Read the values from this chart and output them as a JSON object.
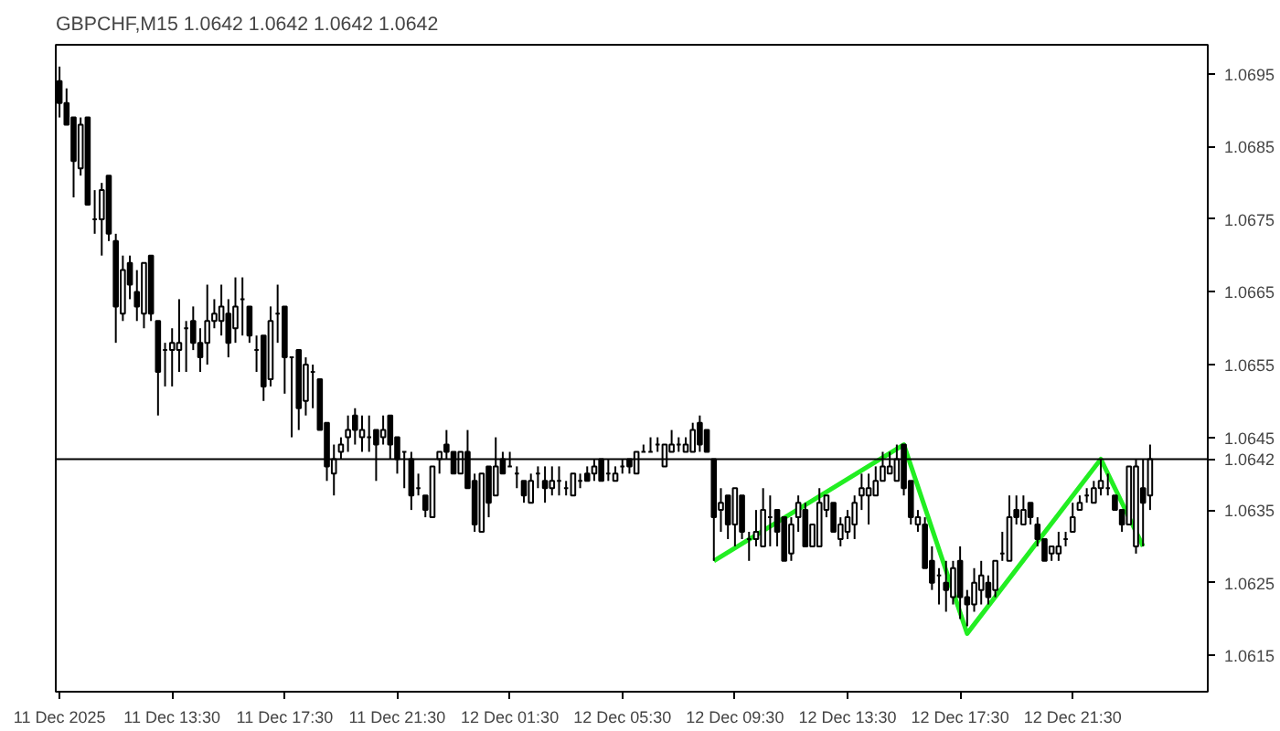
{
  "chart_data": {
    "type": "candlestick",
    "title": "GBPCHF,M15 1.0642 1.0642 1.0642 1.0642",
    "x": [
      "2025-12-11T09:30",
      "2025-12-11T09:45",
      "2025-12-11T10:00",
      "2025-12-11T10:15",
      "2025-12-11T10:30",
      "2025-12-11T10:45",
      "2025-12-11T11:00",
      "2025-12-11T11:15",
      "2025-12-11T11:30",
      "2025-12-11T11:45",
      "2025-12-11T12:00",
      "2025-12-11T12:15",
      "2025-12-11T12:30",
      "2025-12-11T12:45",
      "2025-12-11T13:00",
      "2025-12-11T13:15",
      "2025-12-11T13:30",
      "2025-12-11T13:45",
      "2025-12-11T14:00",
      "2025-12-11T14:15",
      "2025-12-11T14:30",
      "2025-12-11T14:45",
      "2025-12-11T15:00",
      "2025-12-11T15:15",
      "2025-12-11T15:30",
      "2025-12-11T15:45",
      "2025-12-11T16:00",
      "2025-12-11T16:15",
      "2025-12-11T16:30",
      "2025-12-11T16:45",
      "2025-12-11T17:00",
      "2025-12-11T17:15",
      "2025-12-11T17:30",
      "2025-12-11T17:45",
      "2025-12-11T18:00",
      "2025-12-11T18:15",
      "2025-12-11T18:30",
      "2025-12-11T18:45",
      "2025-12-11T19:00",
      "2025-12-11T19:15",
      "2025-12-11T19:30",
      "2025-12-11T19:45",
      "2025-12-11T20:00",
      "2025-12-11T20:15",
      "2025-12-11T20:30",
      "2025-12-11T20:45",
      "2025-12-11T21:00",
      "2025-12-11T21:15",
      "2025-12-11T21:30",
      "2025-12-11T21:45",
      "2025-12-11T22:00",
      "2025-12-11T22:15",
      "2025-12-11T22:30",
      "2025-12-11T22:45",
      "2025-12-11T23:00",
      "2025-12-11T23:15",
      "2025-12-11T23:30",
      "2025-12-11T23:45",
      "2025-12-12T00:00",
      "2025-12-12T00:15",
      "2025-12-12T00:30",
      "2025-12-12T00:45",
      "2025-12-12T01:00",
      "2025-12-12T01:15",
      "2025-12-12T01:30",
      "2025-12-12T01:45",
      "2025-12-12T02:00",
      "2025-12-12T02:15",
      "2025-12-12T02:30",
      "2025-12-12T02:45",
      "2025-12-12T03:00",
      "2025-12-12T03:15",
      "2025-12-12T03:30",
      "2025-12-12T03:45",
      "2025-12-12T04:00",
      "2025-12-12T04:15",
      "2025-12-12T04:30",
      "2025-12-12T04:45",
      "2025-12-12T05:00",
      "2025-12-12T05:15",
      "2025-12-12T05:30",
      "2025-12-12T05:45",
      "2025-12-12T06:00",
      "2025-12-12T06:15",
      "2025-12-12T06:30",
      "2025-12-12T06:45",
      "2025-12-12T07:00",
      "2025-12-12T07:15",
      "2025-12-12T07:30",
      "2025-12-12T07:45",
      "2025-12-12T08:00",
      "2025-12-12T08:15",
      "2025-12-12T08:30",
      "2025-12-12T08:45",
      "2025-12-12T09:00",
      "2025-12-12T09:15",
      "2025-12-12T09:30",
      "2025-12-12T09:45",
      "2025-12-12T10:00",
      "2025-12-12T10:15",
      "2025-12-12T10:30",
      "2025-12-12T10:45",
      "2025-12-12T11:00",
      "2025-12-12T11:15",
      "2025-12-12T11:30",
      "2025-12-12T11:45",
      "2025-12-12T12:00",
      "2025-12-12T12:15",
      "2025-12-12T12:30",
      "2025-12-12T12:45",
      "2025-12-12T13:00",
      "2025-12-12T13:15",
      "2025-12-12T13:30",
      "2025-12-12T13:45",
      "2025-12-12T14:00",
      "2025-12-12T14:15",
      "2025-12-12T14:30",
      "2025-12-12T14:45",
      "2025-12-12T15:00",
      "2025-12-12T15:15",
      "2025-12-12T15:30",
      "2025-12-12T15:45",
      "2025-12-12T16:00",
      "2025-12-12T16:15",
      "2025-12-12T16:30",
      "2025-12-12T16:45",
      "2025-12-12T17:00",
      "2025-12-12T17:15",
      "2025-12-12T17:30",
      "2025-12-12T17:45",
      "2025-12-12T18:00",
      "2025-12-12T18:15",
      "2025-12-12T18:30",
      "2025-12-12T18:45",
      "2025-12-12T19:00",
      "2025-12-12T19:15",
      "2025-12-12T19:30",
      "2025-12-12T19:45",
      "2025-12-12T20:00",
      "2025-12-12T20:15",
      "2025-12-12T20:30",
      "2025-12-12T20:45",
      "2025-12-12T21:00",
      "2025-12-12T21:15",
      "2025-12-12T21:30",
      "2025-12-12T21:45",
      "2025-12-12T22:00",
      "2025-12-12T22:15",
      "2025-12-12T22:30",
      "2025-12-12T22:45",
      "2025-12-12T23:00",
      "2025-12-12T23:15",
      "2025-12-12T23:30",
      "2025-12-12T23:45",
      "2025-12-13T00:00",
      "2025-12-13T00:15"
    ],
    "ohlc": [
      [
        1.0694,
        1.0696,
        1.0689,
        1.0691
      ],
      [
        1.0691,
        1.0693,
        1.0688,
        1.0688
      ],
      [
        1.0689,
        1.0689,
        1.0678,
        1.0683
      ],
      [
        1.0682,
        1.0689,
        1.0681,
        1.0688
      ],
      [
        1.0689,
        1.0689,
        1.0677,
        1.0677
      ],
      [
        1.0675,
        1.0679,
        1.0673,
        1.0675
      ],
      [
        1.0675,
        1.068,
        1.067,
        1.0679
      ],
      [
        1.0681,
        1.0681,
        1.0672,
        1.0673
      ],
      [
        1.0672,
        1.0673,
        1.0658,
        1.0663
      ],
      [
        1.0662,
        1.067,
        1.0661,
        1.0668
      ],
      [
        1.0669,
        1.067,
        1.0664,
        1.0666
      ],
      [
        1.0665,
        1.0668,
        1.0661,
        1.0663
      ],
      [
        1.0662,
        1.0669,
        1.066,
        1.0669
      ],
      [
        1.067,
        1.067,
        1.0661,
        1.0662
      ],
      [
        1.0661,
        1.0661,
        1.0648,
        1.0654
      ],
      [
        1.0657,
        1.0658,
        1.0652,
        1.0657
      ],
      [
        1.0657,
        1.066,
        1.0652,
        1.0658
      ],
      [
        1.0657,
        1.0664,
        1.0654,
        1.0658
      ],
      [
        1.066,
        1.0661,
        1.0654,
        1.066
      ],
      [
        1.0661,
        1.0663,
        1.0657,
        1.0658
      ],
      [
        1.0658,
        1.066,
        1.0654,
        1.0656
      ],
      [
        1.0658,
        1.0666,
        1.0655,
        1.0661
      ],
      [
        1.0661,
        1.0664,
        1.066,
        1.0662
      ],
      [
        1.0661,
        1.0666,
        1.0659,
        1.0663
      ],
      [
        1.0662,
        1.0664,
        1.0656,
        1.0658
      ],
      [
        1.066,
        1.0667,
        1.0658,
        1.0663
      ],
      [
        1.0664,
        1.0667,
        1.0659,
        1.0664
      ],
      [
        1.0663,
        1.0663,
        1.0658,
        1.0659
      ],
      [
        1.0657,
        1.0659,
        1.0654,
        1.0657
      ],
      [
        1.0659,
        1.0659,
        1.065,
        1.0652
      ],
      [
        1.0653,
        1.0663,
        1.0652,
        1.0661
      ],
      [
        1.0662,
        1.0666,
        1.0658,
        1.0662
      ],
      [
        1.0663,
        1.0663,
        1.0651,
        1.0656
      ],
      [
        1.0656,
        1.0656,
        1.0645,
        1.0656
      ],
      [
        1.0657,
        1.0657,
        1.0646,
        1.0649
      ],
      [
        1.065,
        1.0656,
        1.0648,
        1.0655
      ],
      [
        1.0654,
        1.0655,
        1.0649,
        1.0654
      ],
      [
        1.0653,
        1.0653,
        1.0646,
        1.0646
      ],
      [
        1.0647,
        1.0647,
        1.0639,
        1.0641
      ],
      [
        1.064,
        1.0644,
        1.0637,
        1.0642
      ],
      [
        1.0643,
        1.0645,
        1.0642,
        1.0644
      ],
      [
        1.0645,
        1.0648,
        1.0643,
        1.0646
      ],
      [
        1.0648,
        1.0649,
        1.0644,
        1.0646
      ],
      [
        1.0645,
        1.0648,
        1.0643,
        1.0646
      ],
      [
        1.0645,
        1.0648,
        1.0643,
        1.0645
      ],
      [
        1.0646,
        1.0646,
        1.0639,
        1.0644
      ],
      [
        1.0645,
        1.0648,
        1.0644,
        1.0646
      ],
      [
        1.0648,
        1.0648,
        1.0642,
        1.0644
      ],
      [
        1.0645,
        1.0645,
        1.064,
        1.0642
      ],
      [
        1.0643,
        1.0643,
        1.0638,
        1.0643
      ],
      [
        1.0642,
        1.0643,
        1.0635,
        1.0637
      ],
      [
        1.0638,
        1.064,
        1.0637,
        1.0638
      ],
      [
        1.0637,
        1.0637,
        1.0634,
        1.0635
      ],
      [
        1.0634,
        1.0641,
        1.0634,
        1.0641
      ],
      [
        1.0642,
        1.0643,
        1.064,
        1.0643
      ],
      [
        1.0644,
        1.0646,
        1.0642,
        1.0643
      ],
      [
        1.0643,
        1.0643,
        1.064,
        1.064
      ],
      [
        1.064,
        1.0643,
        1.064,
        1.0643
      ],
      [
        1.0643,
        1.0646,
        1.0638,
        1.0638
      ],
      [
        1.0639,
        1.064,
        1.0632,
        1.0633
      ],
      [
        1.0632,
        1.064,
        1.0632,
        1.064
      ],
      [
        1.0641,
        1.0641,
        1.0634,
        1.0636
      ],
      [
        1.0637,
        1.0645,
        1.0637,
        1.0641
      ],
      [
        1.0642,
        1.0643,
        1.064,
        1.064
      ],
      [
        1.0641,
        1.0643,
        1.0641,
        1.0641
      ],
      [
        1.064,
        1.0641,
        1.0638,
        1.064
      ],
      [
        1.0639,
        1.0639,
        1.0636,
        1.0637
      ],
      [
        1.0636,
        1.064,
        1.0636,
        1.0639
      ],
      [
        1.064,
        1.0641,
        1.0638,
        1.064
      ],
      [
        1.0639,
        1.0641,
        1.0636,
        1.0638
      ],
      [
        1.0638,
        1.0641,
        1.0637,
        1.0639
      ],
      [
        1.0639,
        1.0641,
        1.0637,
        1.0639
      ],
      [
        1.0638,
        1.0639,
        1.0637,
        1.0638
      ],
      [
        1.0637,
        1.064,
        1.0637,
        1.064
      ],
      [
        1.0639,
        1.064,
        1.0638,
        1.0639
      ],
      [
        1.064,
        1.0641,
        1.0639,
        1.0639
      ],
      [
        1.064,
        1.0642,
        1.0639,
        1.0641
      ],
      [
        1.0642,
        1.0642,
        1.0639,
        1.0639
      ],
      [
        1.064,
        1.0642,
        1.0639,
        1.064
      ],
      [
        1.0639,
        1.0641,
        1.0639,
        1.064
      ],
      [
        1.0641,
        1.0642,
        1.064,
        1.0641
      ],
      [
        1.0642,
        1.0642,
        1.064,
        1.0641
      ],
      [
        1.064,
        1.0643,
        1.064,
        1.0643
      ],
      [
        1.0643,
        1.0644,
        1.0643,
        1.0643
      ],
      [
        1.0643,
        1.0645,
        1.0643,
        1.0643
      ],
      [
        1.0644,
        1.0645,
        1.0643,
        1.0644
      ],
      [
        1.0641,
        1.0644,
        1.0641,
        1.0644
      ],
      [
        1.0643,
        1.0646,
        1.0643,
        1.0644
      ],
      [
        1.0644,
        1.0645,
        1.0643,
        1.0644
      ],
      [
        1.0643,
        1.0645,
        1.0643,
        1.0644
      ],
      [
        1.0643,
        1.0647,
        1.0643,
        1.0646
      ],
      [
        1.0647,
        1.0648,
        1.0643,
        1.0644
      ],
      [
        1.0646,
        1.0646,
        1.0643,
        1.0643
      ],
      [
        1.0642,
        1.0642,
        1.0628,
        1.0634
      ],
      [
        1.0635,
        1.0638,
        1.0632,
        1.0636
      ],
      [
        1.0637,
        1.0637,
        1.0631,
        1.0633
      ],
      [
        1.0633,
        1.0638,
        1.063,
        1.0638
      ],
      [
        1.0637,
        1.0637,
        1.0631,
        1.0632
      ],
      [
        1.0631,
        1.0632,
        1.0628,
        1.0631
      ],
      [
        1.0631,
        1.0635,
        1.063,
        1.0632
      ],
      [
        1.063,
        1.0638,
        1.063,
        1.0635
      ],
      [
        1.0634,
        1.0637,
        1.063,
        1.0634
      ],
      [
        1.0635,
        1.0635,
        1.063,
        1.0632
      ],
      [
        1.0634,
        1.0634,
        1.0628,
        1.0628
      ],
      [
        1.0629,
        1.0634,
        1.0628,
        1.0633
      ],
      [
        1.0634,
        1.0637,
        1.0632,
        1.0636
      ],
      [
        1.0635,
        1.0636,
        1.063,
        1.063
      ],
      [
        1.063,
        1.0633,
        1.063,
        1.0633
      ],
      [
        1.063,
        1.0638,
        1.063,
        1.0636
      ],
      [
        1.0635,
        1.0637,
        1.0634,
        1.0637
      ],
      [
        1.0636,
        1.0636,
        1.0632,
        1.0632
      ],
      [
        1.0631,
        1.0634,
        1.063,
        1.0633
      ],
      [
        1.0632,
        1.0635,
        1.0631,
        1.0634
      ],
      [
        1.0633,
        1.0637,
        1.0631,
        1.0636
      ],
      [
        1.0637,
        1.064,
        1.0635,
        1.0638
      ],
      [
        1.0637,
        1.064,
        1.0633,
        1.0638
      ],
      [
        1.0637,
        1.0641,
        1.0637,
        1.0639
      ],
      [
        1.0639,
        1.0643,
        1.0639,
        1.0641
      ],
      [
        1.064,
        1.0643,
        1.064,
        1.0641
      ],
      [
        1.0639,
        1.0644,
        1.0639,
        1.0642
      ],
      [
        1.0644,
        1.0644,
        1.0637,
        1.0638
      ],
      [
        1.0639,
        1.0639,
        1.0633,
        1.0634
      ],
      [
        1.0633,
        1.0635,
        1.0632,
        1.0634
      ],
      [
        1.0633,
        1.0634,
        1.0627,
        1.0627
      ],
      [
        1.0628,
        1.063,
        1.0624,
        1.0625
      ],
      [
        1.0626,
        1.0627,
        1.0622,
        1.0626
      ],
      [
        1.0625,
        1.0628,
        1.0621,
        1.0624
      ],
      [
        1.0623,
        1.0628,
        1.0622,
        1.0627
      ],
      [
        1.0628,
        1.063,
        1.062,
        1.0623
      ],
      [
        1.0623,
        1.0624,
        1.0619,
        1.0622
      ],
      [
        1.0622,
        1.0627,
        1.0621,
        1.0625
      ],
      [
        1.0624,
        1.0628,
        1.0622,
        1.0626
      ],
      [
        1.0625,
        1.0626,
        1.0622,
        1.0623
      ],
      [
        1.0624,
        1.0628,
        1.0623,
        1.0628
      ],
      [
        1.0629,
        1.0632,
        1.0628,
        1.0629
      ],
      [
        1.0628,
        1.0637,
        1.0628,
        1.0634
      ],
      [
        1.0635,
        1.0637,
        1.0633,
        1.0634
      ],
      [
        1.0633,
        1.0637,
        1.0633,
        1.0635
      ],
      [
        1.0636,
        1.0636,
        1.0633,
        1.0634
      ],
      [
        1.0633,
        1.0634,
        1.063,
        1.0631
      ],
      [
        1.0631,
        1.0631,
        1.0628,
        1.0628
      ],
      [
        1.0629,
        1.063,
        1.0628,
        1.063
      ],
      [
        1.0629,
        1.0632,
        1.0628,
        1.063
      ],
      [
        1.0631,
        1.0632,
        1.063,
        1.0631
      ],
      [
        1.0632,
        1.0636,
        1.0632,
        1.0634
      ],
      [
        1.0635,
        1.0637,
        1.0635,
        1.0636
      ],
      [
        1.0637,
        1.0638,
        1.0636,
        1.0637
      ],
      [
        1.0636,
        1.0639,
        1.0636,
        1.0638
      ],
      [
        1.0638,
        1.0642,
        1.0637,
        1.0639
      ],
      [
        1.0638,
        1.064,
        1.0637,
        1.0638
      ],
      [
        1.0637,
        1.0637,
        1.0635,
        1.0635
      ],
      [
        1.0635,
        1.0635,
        1.0632,
        1.0633
      ],
      [
        1.0633,
        1.0641,
        1.0633,
        1.0641
      ],
      [
        1.063,
        1.0642,
        1.0629,
        1.0641
      ],
      [
        1.0638,
        1.0642,
        1.063,
        1.0636
      ],
      [
        1.0637,
        1.0644,
        1.0635,
        1.0642
      ]
    ],
    "series": [
      {
        "type": "line",
        "color": "#22ee22",
        "x": [
          "2025-12-12T08:45",
          "2025-12-12T15:30",
          "2025-12-12T17:45",
          "2025-12-12T22:30",
          "2025-12-13T00:00"
        ],
        "values": [
          1.0628,
          1.0644,
          1.0618,
          1.0642,
          1.063
        ]
      }
    ],
    "xlim": [
      "2025-12-11T09:22",
      "2025-12-13T02:18"
    ],
    "ylim": [
      1.061,
      1.0699
    ],
    "xticks": [
      {
        "value": "2025-12-11T09:30",
        "label": "11 Dec 2025"
      },
      {
        "value": "2025-12-11T13:30",
        "label": "11 Dec 13:30"
      },
      {
        "value": "2025-12-11T17:30",
        "label": "11 Dec 17:30"
      },
      {
        "value": "2025-12-11T21:30",
        "label": "11 Dec 21:30"
      },
      {
        "value": "2025-12-12T01:30",
        "label": "12 Dec 01:30"
      },
      {
        "value": "2025-12-12T05:30",
        "label": "12 Dec 05:30"
      },
      {
        "value": "2025-12-12T09:30",
        "label": "12 Dec 09:30"
      },
      {
        "value": "2025-12-12T13:30",
        "label": "12 Dec 13:30"
      },
      {
        "value": "2025-12-12T17:30",
        "label": "12 Dec 17:30"
      },
      {
        "value": "2025-12-12T21:30",
        "label": "12 Dec 21:30"
      }
    ],
    "yticks": [
      {
        "value": 1.0615,
        "label": "1.0615"
      },
      {
        "value": 1.0625,
        "label": "1.0625"
      },
      {
        "value": 1.0635,
        "label": "1.0635"
      },
      {
        "value": 1.0645,
        "label": "1.0645"
      },
      {
        "value": 1.0655,
        "label": "1.0655"
      },
      {
        "value": 1.0665,
        "label": "1.0665"
      },
      {
        "value": 1.0675,
        "label": "1.0675"
      },
      {
        "value": 1.0685,
        "label": "1.0685"
      },
      {
        "value": 1.0695,
        "label": "1.0695"
      }
    ],
    "ref_lines": [
      {
        "axis": "y",
        "value": 1.0642,
        "label": "1.0642",
        "color": "#000000"
      }
    ],
    "grid": false
  }
}
